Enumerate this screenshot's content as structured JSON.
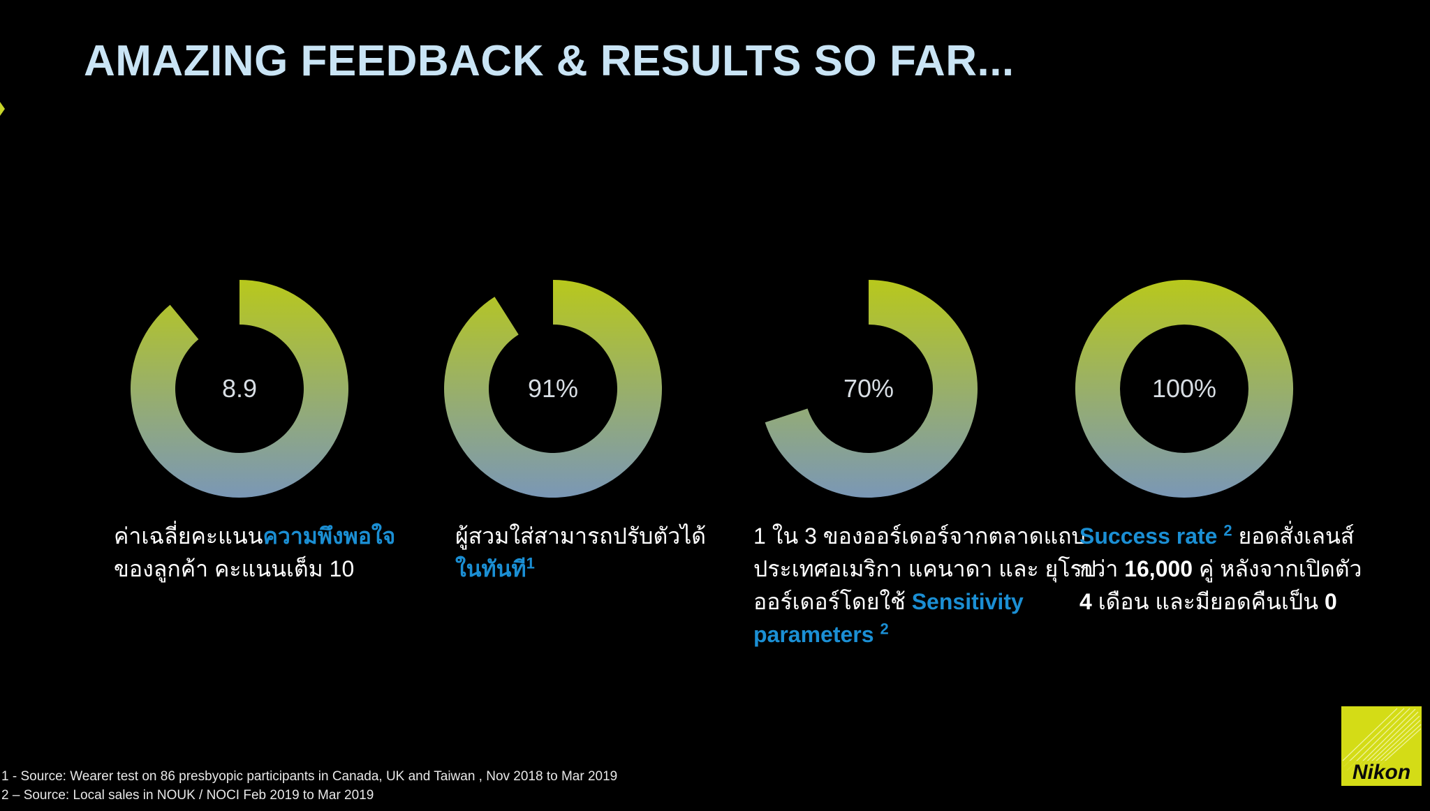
{
  "title": "AMAZING FEEDBACK & RESULTS SO FAR...",
  "colors": {
    "title": "#c9e4f5",
    "ring_top": "#b8c81c",
    "ring_bottom": "#7a97b6",
    "highlight": "#1b8fd4",
    "logo_bg": "#d4dc16"
  },
  "metrics": [
    {
      "value": "8.9",
      "fill_fraction": 0.89,
      "caption": {
        "l1_pre": "ค่าเฉลี่ยคะแนน",
        "l1_hl": "ความพึงพอใจ",
        "l2": "ของลูกค้า คะแนนเต็ม 10"
      }
    },
    {
      "value": "91%",
      "fill_fraction": 0.91,
      "caption": {
        "l1": "ผู้สวมใส่สามารถปรับตัวได้",
        "l2_hl": "ในทันที",
        "l2_sup": "1"
      }
    },
    {
      "value": "70%",
      "fill_fraction": 0.7,
      "caption": {
        "l1": "1 ใน 3 ของออร์เดอร์จากตลาดแถบ",
        "l2": "ประเทศอเมริกา แคนาดา และ ยุโรป",
        "l3_pre": "ออร์เดอร์โดยใช้ ",
        "l3_hl": "Sensitivity",
        "l4_hl": "parameters ",
        "l4_sup": "2"
      }
    },
    {
      "value": "100%",
      "fill_fraction": 1.0,
      "caption": {
        "l1_hl": "Success rate ",
        "l1_sup": "2",
        "l1_post": " ยอดสั่งเลนส์",
        "l2_pre": "กว่า ",
        "l2_num": "16,000",
        "l2_post": " คู่ หลังจากเปิดตัว",
        "l3_num": "4",
        "l3_mid": " เดือน และมียอดคืนเป็น ",
        "l3_num2": "0"
      }
    }
  ],
  "footnotes": [
    "1 - Source: Wearer test on 86 presbyopic participants in Canada, UK and Taiwan , Nov 2018 to Mar 2019",
    "2 – Source: Local sales in NOUK / NOCI Feb 2019 to Mar 2019"
  ],
  "logo": {
    "text": "Nikon"
  }
}
